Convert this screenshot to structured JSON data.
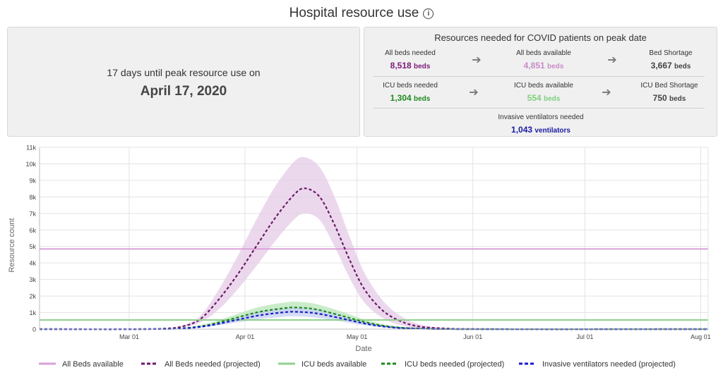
{
  "header": {
    "title": "Hospital resource use",
    "info_icon": "info-icon"
  },
  "peak": {
    "days": "17 days",
    "suffix": " until peak resource use on",
    "date": "April 17, 2020"
  },
  "resources": {
    "title": "Resources needed for COVID patients on peak date",
    "rows": [
      [
        {
          "label": "All beds needed",
          "value": "8,518",
          "unit": "beds",
          "color": "#7b1a7b"
        },
        {
          "label": "All beds available",
          "value": "4,851",
          "unit": "beds",
          "color": "#c88ac8"
        },
        {
          "label": "Bed Shortage",
          "value": "3,667",
          "unit": "beds",
          "color": "#444444"
        }
      ],
      [
        {
          "label": "ICU beds needed",
          "value": "1,304",
          "unit": "beds",
          "color": "#1f8a1f"
        },
        {
          "label": "ICU beds available",
          "value": "554",
          "unit": "beds",
          "color": "#7fcf7f"
        },
        {
          "label": "ICU Bed Shortage",
          "value": "750",
          "unit": "beds",
          "color": "#444444"
        }
      ]
    ],
    "ventilators": {
      "label": "Invasive ventilators needed",
      "value": "1,043",
      "unit": "ventilators",
      "color": "#1a1aa0"
    },
    "arrow_icon": "arrow-right-icon"
  },
  "chart_data": {
    "type": "line",
    "xlabel": "Date",
    "ylabel": "Resource count",
    "x_range": [
      "2020-02-06",
      "2020-08-03"
    ],
    "ylim": [
      0,
      11000
    ],
    "y_ticks": [
      0,
      1000,
      2000,
      3000,
      4000,
      5000,
      6000,
      7000,
      8000,
      9000,
      10000,
      11000
    ],
    "y_tick_labels": [
      "0",
      "1k",
      "2k",
      "3k",
      "4k",
      "5k",
      "6k",
      "7k",
      "8k",
      "9k",
      "10k",
      "11k"
    ],
    "x_ticks": [
      "2020-03-01",
      "2020-04-01",
      "2020-05-01",
      "2020-06-01",
      "2020-07-01",
      "2020-08-01"
    ],
    "x_tick_labels": [
      "Mar 01",
      "Apr 01",
      "May 01",
      "Jun 01",
      "Jul 01",
      "Aug 01"
    ],
    "grid": true,
    "legend_position": "bottom",
    "series": [
      {
        "name": "All Beds available",
        "style": "solid",
        "color": "#d9a0d9",
        "points": [
          [
            "2020-02-06",
            4851
          ],
          [
            "2020-08-03",
            4851
          ]
        ]
      },
      {
        "name": "All Beds needed (projected)",
        "style": "dashed",
        "color": "#6b1a6b",
        "band_color": "#e6cbe6",
        "points": [
          [
            "2020-02-06",
            0
          ],
          [
            "2020-03-01",
            0
          ],
          [
            "2020-03-10",
            30
          ],
          [
            "2020-03-15",
            150
          ],
          [
            "2020-03-20",
            600
          ],
          [
            "2020-03-25",
            1800
          ],
          [
            "2020-03-30",
            3300
          ],
          [
            "2020-04-04",
            5000
          ],
          [
            "2020-04-09",
            6700
          ],
          [
            "2020-04-14",
            8100
          ],
          [
            "2020-04-17",
            8518
          ],
          [
            "2020-04-21",
            8000
          ],
          [
            "2020-04-25",
            6300
          ],
          [
            "2020-04-29",
            4200
          ],
          [
            "2020-05-03",
            2400
          ],
          [
            "2020-05-08",
            1100
          ],
          [
            "2020-05-13",
            450
          ],
          [
            "2020-05-18",
            150
          ],
          [
            "2020-05-25",
            40
          ],
          [
            "2020-06-05",
            0
          ],
          [
            "2020-08-03",
            0
          ]
        ],
        "upper": [
          [
            "2020-02-06",
            0
          ],
          [
            "2020-03-01",
            0
          ],
          [
            "2020-03-10",
            40
          ],
          [
            "2020-03-15",
            200
          ],
          [
            "2020-03-20",
            800
          ],
          [
            "2020-03-25",
            2400
          ],
          [
            "2020-03-30",
            4400
          ],
          [
            "2020-04-04",
            6600
          ],
          [
            "2020-04-09",
            8600
          ],
          [
            "2020-04-14",
            10100
          ],
          [
            "2020-04-17",
            10400
          ],
          [
            "2020-04-21",
            9800
          ],
          [
            "2020-04-25",
            8000
          ],
          [
            "2020-04-29",
            5600
          ],
          [
            "2020-05-03",
            3400
          ],
          [
            "2020-05-08",
            1700
          ],
          [
            "2020-05-13",
            750
          ],
          [
            "2020-05-18",
            280
          ],
          [
            "2020-05-25",
            70
          ],
          [
            "2020-06-05",
            0
          ],
          [
            "2020-08-03",
            0
          ]
        ],
        "lower": [
          [
            "2020-02-06",
            0
          ],
          [
            "2020-03-01",
            0
          ],
          [
            "2020-03-10",
            20
          ],
          [
            "2020-03-15",
            100
          ],
          [
            "2020-03-20",
            400
          ],
          [
            "2020-03-25",
            1200
          ],
          [
            "2020-03-30",
            2400
          ],
          [
            "2020-04-04",
            3800
          ],
          [
            "2020-04-09",
            5300
          ],
          [
            "2020-04-14",
            6600
          ],
          [
            "2020-04-17",
            7000
          ],
          [
            "2020-04-21",
            6600
          ],
          [
            "2020-04-25",
            5000
          ],
          [
            "2020-04-29",
            3100
          ],
          [
            "2020-05-03",
            1600
          ],
          [
            "2020-05-08",
            650
          ],
          [
            "2020-05-13",
            220
          ],
          [
            "2020-05-18",
            60
          ],
          [
            "2020-05-25",
            10
          ],
          [
            "2020-06-05",
            0
          ],
          [
            "2020-08-03",
            0
          ]
        ]
      },
      {
        "name": "ICU beds available",
        "style": "solid",
        "color": "#8fd08f",
        "points": [
          [
            "2020-02-06",
            554
          ],
          [
            "2020-08-03",
            554
          ]
        ]
      },
      {
        "name": "ICU beds needed (projected)",
        "style": "dashed",
        "color": "#1a8a1a",
        "band_color": "#b8e6b8",
        "points": [
          [
            "2020-02-06",
            0
          ],
          [
            "2020-03-05",
            0
          ],
          [
            "2020-03-15",
            50
          ],
          [
            "2020-03-22",
            250
          ],
          [
            "2020-03-29",
            650
          ],
          [
            "2020-04-05",
            1050
          ],
          [
            "2020-04-12",
            1280
          ],
          [
            "2020-04-15",
            1304
          ],
          [
            "2020-04-20",
            1200
          ],
          [
            "2020-04-27",
            800
          ],
          [
            "2020-05-04",
            380
          ],
          [
            "2020-05-11",
            120
          ],
          [
            "2020-05-20",
            20
          ],
          [
            "2020-06-01",
            0
          ],
          [
            "2020-08-03",
            0
          ]
        ],
        "upper": [
          [
            "2020-02-06",
            0
          ],
          [
            "2020-03-05",
            0
          ],
          [
            "2020-03-15",
            70
          ],
          [
            "2020-03-22",
            330
          ],
          [
            "2020-03-29",
            850
          ],
          [
            "2020-04-05",
            1350
          ],
          [
            "2020-04-12",
            1620
          ],
          [
            "2020-04-15",
            1650
          ],
          [
            "2020-04-20",
            1520
          ],
          [
            "2020-04-27",
            1050
          ],
          [
            "2020-05-04",
            520
          ],
          [
            "2020-05-11",
            180
          ],
          [
            "2020-05-20",
            35
          ],
          [
            "2020-06-01",
            0
          ],
          [
            "2020-08-03",
            0
          ]
        ],
        "lower": [
          [
            "2020-02-06",
            0
          ],
          [
            "2020-03-05",
            0
          ],
          [
            "2020-03-15",
            30
          ],
          [
            "2020-03-22",
            170
          ],
          [
            "2020-03-29",
            460
          ],
          [
            "2020-04-05",
            760
          ],
          [
            "2020-04-12",
            940
          ],
          [
            "2020-04-15",
            960
          ],
          [
            "2020-04-20",
            880
          ],
          [
            "2020-04-27",
            560
          ],
          [
            "2020-05-04",
            250
          ],
          [
            "2020-05-11",
            70
          ],
          [
            "2020-05-20",
            10
          ],
          [
            "2020-06-01",
            0
          ],
          [
            "2020-08-03",
            0
          ]
        ]
      },
      {
        "name": "Invasive ventilators needed (projected)",
        "style": "dashed",
        "color": "#1a1acc",
        "band_color": "#c8d0f5",
        "points": [
          [
            "2020-02-06",
            0
          ],
          [
            "2020-03-05",
            0
          ],
          [
            "2020-03-15",
            40
          ],
          [
            "2020-03-22",
            200
          ],
          [
            "2020-03-29",
            520
          ],
          [
            "2020-04-05",
            840
          ],
          [
            "2020-04-12",
            1030
          ],
          [
            "2020-04-15",
            1043
          ],
          [
            "2020-04-20",
            960
          ],
          [
            "2020-04-27",
            640
          ],
          [
            "2020-05-04",
            300
          ],
          [
            "2020-05-11",
            95
          ],
          [
            "2020-05-20",
            15
          ],
          [
            "2020-06-01",
            0
          ],
          [
            "2020-08-03",
            0
          ]
        ],
        "upper": [
          [
            "2020-02-06",
            0
          ],
          [
            "2020-03-05",
            0
          ],
          [
            "2020-03-15",
            55
          ],
          [
            "2020-03-22",
            260
          ],
          [
            "2020-03-29",
            670
          ],
          [
            "2020-04-05",
            1070
          ],
          [
            "2020-04-12",
            1300
          ],
          [
            "2020-04-15",
            1320
          ],
          [
            "2020-04-20",
            1220
          ],
          [
            "2020-04-27",
            830
          ],
          [
            "2020-05-04",
            410
          ],
          [
            "2020-05-11",
            140
          ],
          [
            "2020-05-20",
            25
          ],
          [
            "2020-06-01",
            0
          ],
          [
            "2020-08-03",
            0
          ]
        ],
        "lower": [
          [
            "2020-02-06",
            0
          ],
          [
            "2020-03-05",
            0
          ],
          [
            "2020-03-15",
            25
          ],
          [
            "2020-03-22",
            140
          ],
          [
            "2020-03-29",
            370
          ],
          [
            "2020-04-05",
            610
          ],
          [
            "2020-04-12",
            760
          ],
          [
            "2020-04-15",
            770
          ],
          [
            "2020-04-20",
            700
          ],
          [
            "2020-04-27",
            450
          ],
          [
            "2020-05-04",
            200
          ],
          [
            "2020-05-11",
            55
          ],
          [
            "2020-05-20",
            8
          ],
          [
            "2020-06-01",
            0
          ],
          [
            "2020-08-03",
            0
          ]
        ]
      }
    ]
  }
}
